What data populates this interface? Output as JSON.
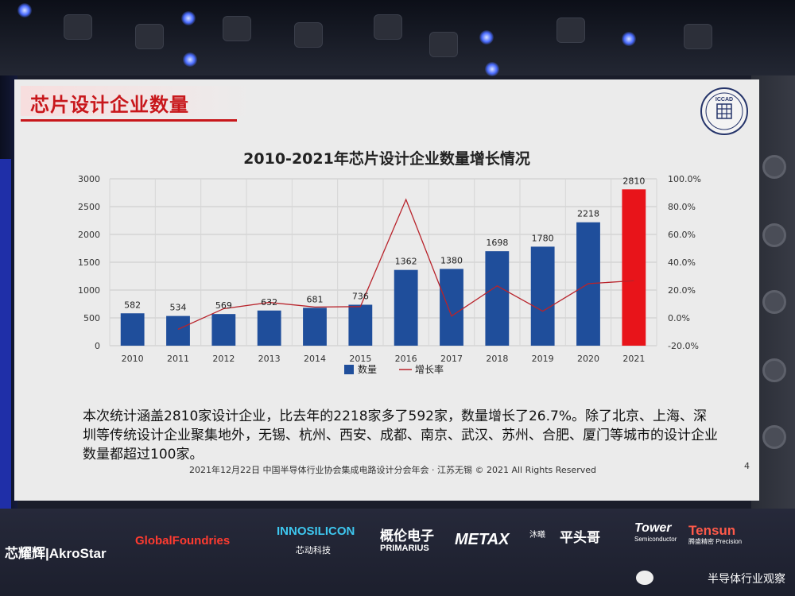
{
  "slide": {
    "title": "芯片设计企业数量",
    "logo_text": "ICCAD",
    "chart_title": "2010-2021年芯片设计企业数量增长情况",
    "paragraph": "本次统计涵盖2810家设计企业，比去年的2218家多了592家，数量增长了26.7%。除了北京、上海、深圳等传统设计企业聚集地外，无锡、杭州、西安、成都、南京、武汉、苏州、合肥、厦门等城市的设计企业数量都超过100家。",
    "footer": "2021年12月22日  中国半导体行业协会集成电路设计分会年会 · 江苏无锡 © 2021 All Rights Reserved",
    "page_number": "4"
  },
  "chart_data": {
    "type": "bar",
    "title": "2010-2021年芯片设计企业数量增长情况",
    "categories": [
      "2010",
      "2011",
      "2012",
      "2013",
      "2014",
      "2015",
      "2016",
      "2017",
      "2018",
      "2019",
      "2020",
      "2021"
    ],
    "series": [
      {
        "name": "数量",
        "type": "bar",
        "values": [
          582,
          534,
          569,
          632,
          681,
          736,
          1362,
          1380,
          1698,
          1780,
          2218,
          2810
        ],
        "color": "#1f4e9b",
        "highlight_color": "#e8141a",
        "highlight_index": 11
      },
      {
        "name": "增长率",
        "type": "line",
        "axis": "right",
        "values": [
          null,
          -8.2,
          6.6,
          11.1,
          7.8,
          8.1,
          85.1,
          1.3,
          23.0,
          4.8,
          24.6,
          26.7
        ],
        "color": "#b8232b"
      }
    ],
    "left_axis": {
      "ylim": [
        0,
        3000
      ],
      "ticks": [
        "0",
        "500",
        "1000",
        "1500",
        "2000",
        "2500",
        "3000"
      ]
    },
    "right_axis": {
      "ylim": [
        -20,
        100
      ],
      "ticks": [
        "-20.0%",
        "0.0%",
        "20.0%",
        "40.0%",
        "60.0%",
        "80.0%",
        "100.0%"
      ]
    },
    "data_labels": [
      "582",
      "534",
      "569",
      "632",
      "681",
      "736",
      "1362",
      "1380",
      "1698",
      "1780",
      "2218",
      "2810"
    ],
    "legend": [
      "数量",
      "增长率"
    ],
    "legend_position": "bottom",
    "grid": true
  },
  "sponsors": [
    "芯耀辉|AkroStar",
    "GlobalFoundries",
    "INNOSILICON",
    "芯动科技",
    "概伦电子",
    "PRIMARIUS",
    "METAX",
    "沐曦",
    "平头哥",
    "Tower",
    "Semiconductor",
    "Tensun",
    "腾盛精密 Precision"
  ],
  "watermark": "半导体行业观察"
}
